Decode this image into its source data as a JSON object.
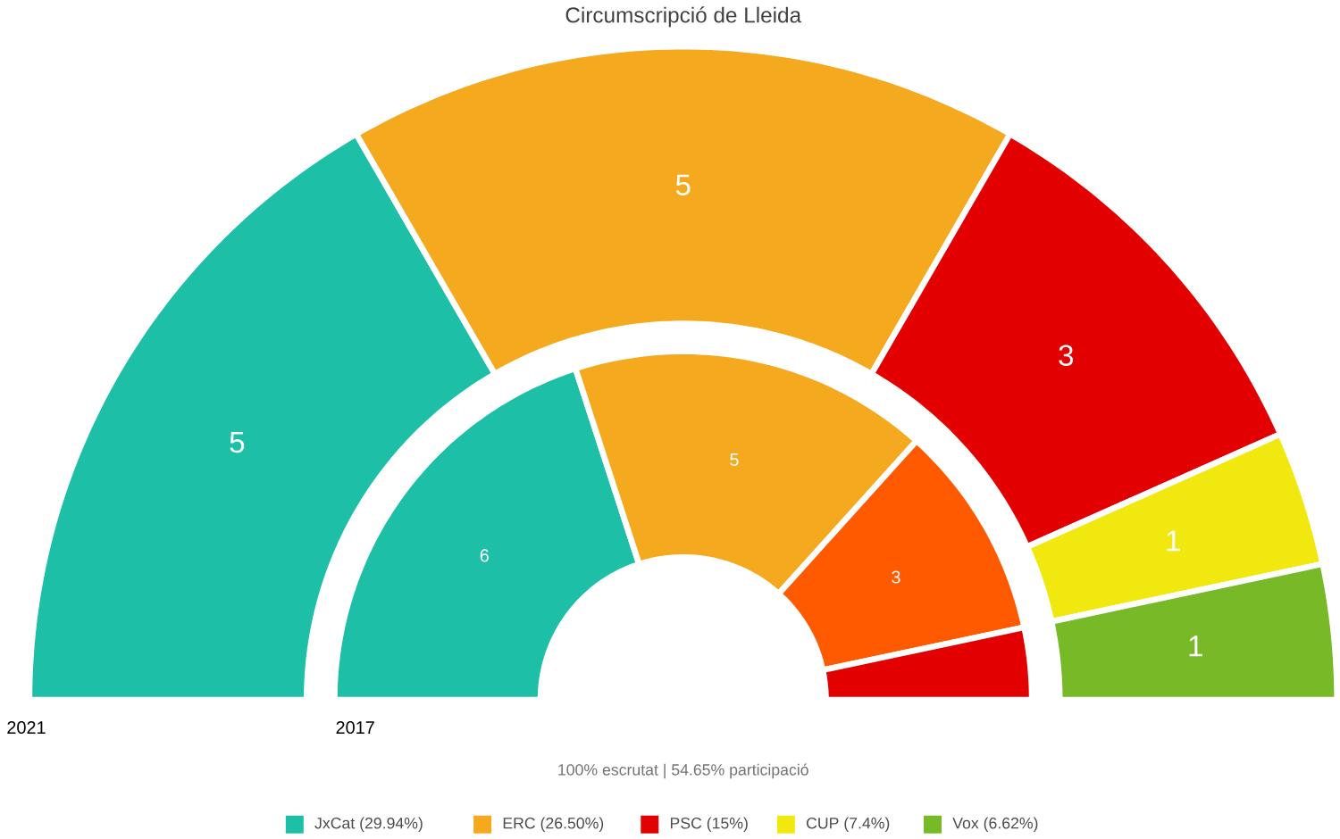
{
  "chart_data": [
    {
      "type": "donut",
      "title": "Circumscripció de Lleida",
      "categories": [
        "JxCat (29.94%)",
        "ERC (26.50%)",
        "PSC (15%)",
        "CUP (7.4%)",
        "Vox (6.62%)"
      ],
      "values": [
        5,
        5,
        3,
        1,
        1
      ],
      "colors": [
        "#1dbfa6",
        "#f5a91f",
        "#e30000",
        "#f0e80f",
        "#78b928"
      ],
      "data_labels": true,
      "legend": "bottom",
      "annotations": [
        "2021",
        "100% escrutat  |  54.65% participació"
      ]
    },
    {
      "type": "donut",
      "categories": [
        null,
        null,
        null,
        null
      ],
      "values": [
        6,
        5,
        3,
        1
      ],
      "colors": [
        "#1dbfa6",
        "#f5a91f",
        "#ff5a00",
        "#e30000"
      ],
      "value_labels": [
        "6",
        "5",
        "3",
        null
      ],
      "annotations": [
        "2017"
      ]
    }
  ]
}
